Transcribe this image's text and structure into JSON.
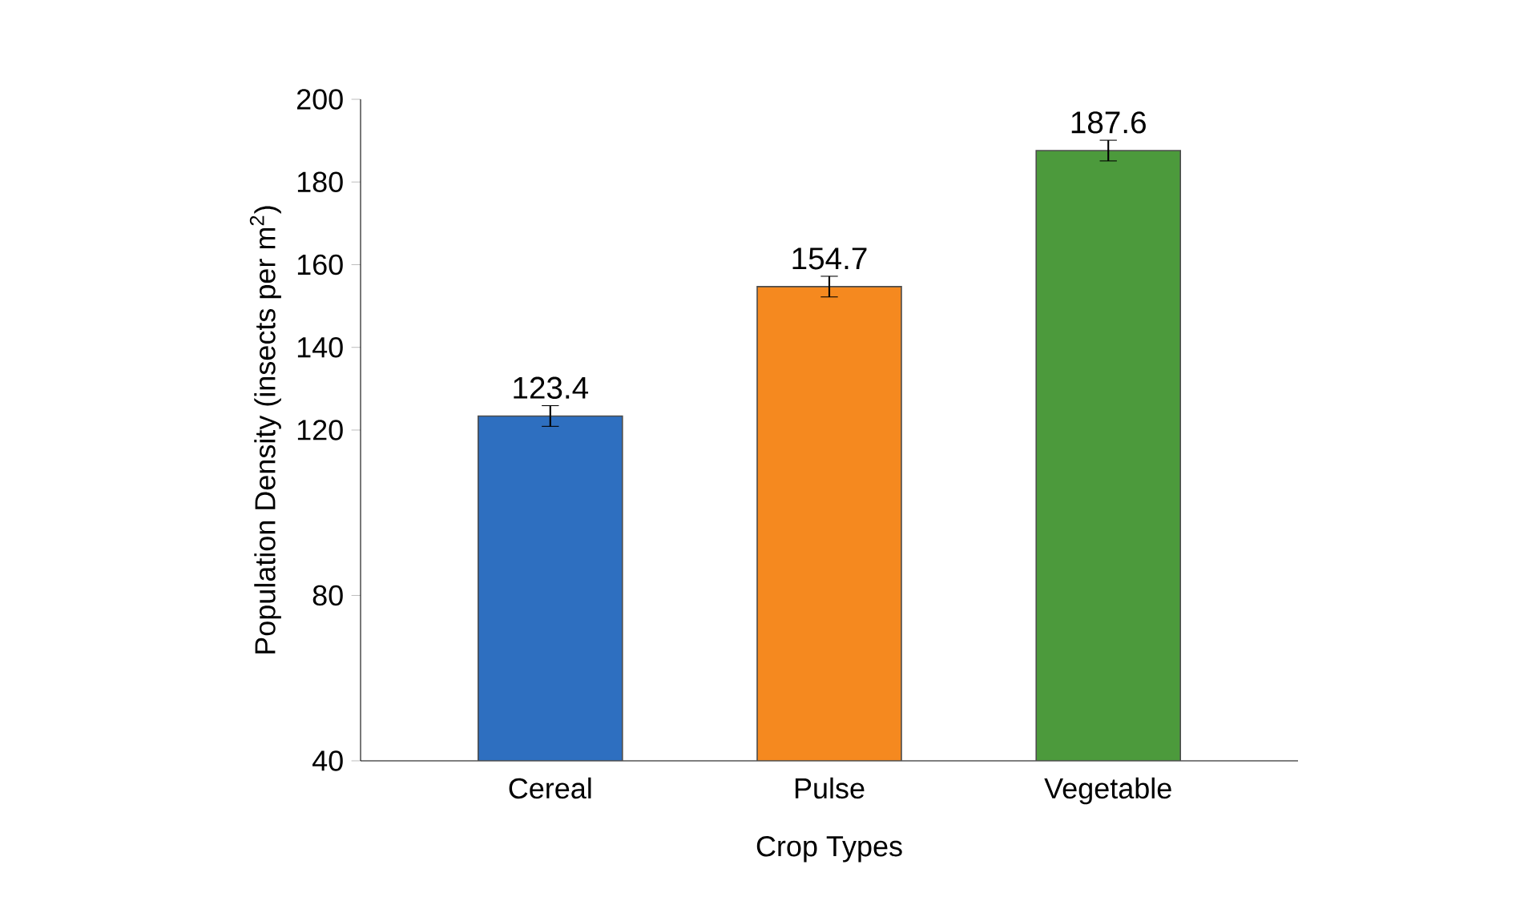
{
  "chart_data": {
    "type": "bar",
    "xlabel": "Crop Types",
    "ylabel": "Population Density (insects per m$^{2}$)",
    "categories": [
      "Cereal",
      "Pulse",
      "Vegetable"
    ],
    "values": [
      123.4,
      154.7,
      187.6
    ],
    "colors": [
      "#2e6fc0",
      "#f5891f",
      "#4c9a3c"
    ],
    "errors": [
      2.5,
      2.5,
      2.5
    ],
    "data_labels": true,
    "ylim": [
      40,
      200
    ],
    "yticks": [
      40,
      80,
      120,
      140,
      160,
      180,
      200
    ],
    "grid": false
  }
}
